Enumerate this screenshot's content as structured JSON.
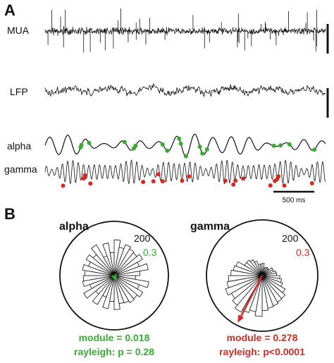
{
  "panel_a": {
    "letter": "A",
    "traces": [
      {
        "label": "MUA"
      },
      {
        "label": "LFP"
      },
      {
        "label": "alpha"
      },
      {
        "label": "gamma"
      }
    ],
    "time_scale_label": "500 ms"
  },
  "panel_b": {
    "letter": "B",
    "colors": {
      "alpha": "#3aaa35",
      "gamma": "#d42a26"
    },
    "plots": [
      {
        "title": "alpha",
        "count_label": "200",
        "vector_label": "0.3",
        "module_text": "module = 0.018",
        "rayleigh_text": "rayleigh: p = 0.28",
        "color": "#3aaa35"
      },
      {
        "title": "gamma",
        "count_label": "200",
        "vector_label": "0.3",
        "module_text": "module = 0.278",
        "rayleigh_text": "rayleigh: p<0.0001",
        "color": "#d42a26"
      }
    ]
  }
}
